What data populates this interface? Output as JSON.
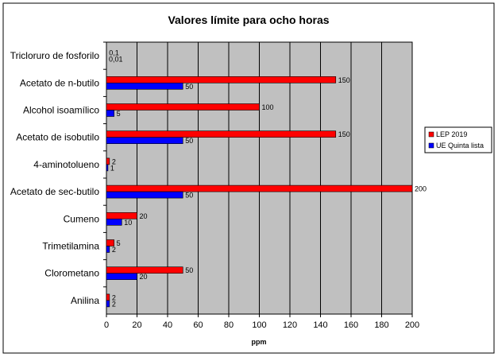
{
  "chart_data": {
    "type": "bar",
    "orientation": "horizontal",
    "title": "Valores límite para ocho horas",
    "xlabel": "ppm",
    "ylabel": "",
    "xlim": [
      0,
      200
    ],
    "x_ticks": [
      "0",
      "20",
      "40",
      "60",
      "80",
      "100",
      "120",
      "140",
      "160",
      "180",
      "200"
    ],
    "grid": "vertical",
    "legend_position": "right",
    "categories": [
      "Tricloruro de fosforilo",
      "Acetato de n-butilo",
      "Alcohol isoamílico",
      "Acetato de isobutilo",
      "4-aminotolueno",
      "Acetato de sec-butilo",
      "Cumeno",
      "Trimetilamina",
      "Clorometano",
      "Anilina"
    ],
    "series": [
      {
        "name": "LEP 2019",
        "color": "#ff0000",
        "values": [
          0.1,
          150,
          100,
          150,
          2,
          200,
          20,
          5,
          50,
          2
        ],
        "labels": [
          "0,1",
          "150",
          "100",
          "150",
          "2",
          "200",
          "20",
          "5",
          "50",
          "2"
        ]
      },
      {
        "name": "UE Quinta lista",
        "color": "#0000ff",
        "values": [
          0.01,
          50,
          5,
          50,
          1,
          50,
          10,
          2,
          20,
          2
        ],
        "labels": [
          "0,01",
          "50",
          "5",
          "50",
          "1",
          "50",
          "10",
          "2",
          "20",
          "2"
        ]
      }
    ],
    "colors": {
      "plot_background": "#c0c0c0",
      "grid": "#000000",
      "frame": "#000000"
    }
  }
}
